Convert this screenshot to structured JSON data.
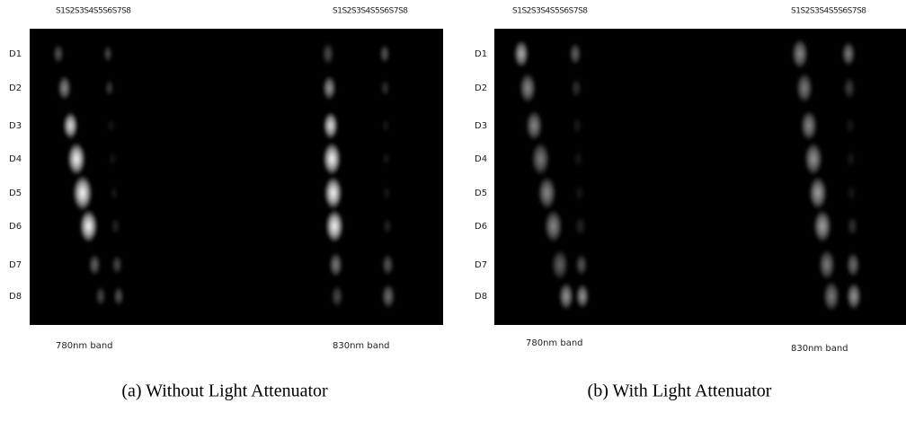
{
  "panels": [
    {
      "caption": "(a) Without Light Attenuator",
      "source_labels": [
        "S1S2S3S4S5S6S7S8",
        "S1S2S3S4S5S6S7S8"
      ],
      "detector_labels": [
        "D1",
        "D2",
        "D3",
        "D4",
        "D5",
        "D6",
        "D7",
        "D8"
      ],
      "band_labels": [
        "780nm band",
        "830nm band"
      ]
    },
    {
      "caption": "(b) With Light Attenuator",
      "source_labels": [
        "S1S2S3S4S5S6S7S8",
        "S1S2S3S4S5S6S7S8"
      ],
      "detector_labels": [
        "D1",
        "D2",
        "D3",
        "D4",
        "D5",
        "D6",
        "D7",
        "D8"
      ],
      "band_labels": [
        "780nm band",
        "830nm band"
      ]
    }
  ]
}
